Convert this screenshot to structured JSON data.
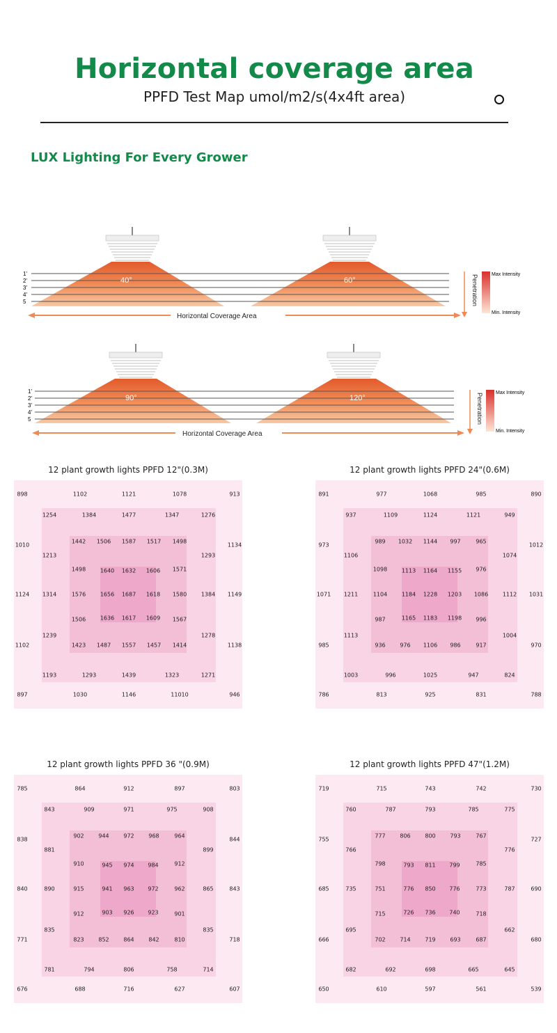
{
  "header": {
    "title": "Horizontal coverage area",
    "subtitle": "PPFD Test Map umol/m2/s(4x4ft area)"
  },
  "brand": "LUX Lighting For Every Grower",
  "diagram": {
    "levels": [
      "1'",
      "2'",
      "3'",
      "4'",
      "5"
    ],
    "coverage_label": "Horizontal Coverage Area",
    "angles": [
      "40°",
      "60°",
      "90°",
      "120°"
    ],
    "penetration_label": "Penetration",
    "max_label": "Max Intensity",
    "min_label": "Min. Intensity"
  },
  "colors": {
    "accent_green": "#138a4a",
    "ring0": "#fce9f1",
    "ring1": "#f8d4e4",
    "ring2": "#f3bfd7",
    "ring3": "#eea8c9"
  },
  "maps": [
    {
      "title": "12 plant growth lights  PPFD 12\"(0.3M)",
      "rows": [
        [
          "898",
          "1102",
          "1121",
          "1078",
          "913"
        ],
        [
          "1254",
          "1384",
          "1477",
          "1347",
          "1276"
        ],
        [
          "1010",
          "1134"
        ],
        [
          "1442",
          "1506",
          "1587",
          "1517",
          "1498"
        ],
        [
          "1213",
          "1293"
        ],
        [
          "1498",
          "1640",
          "1632",
          "1606",
          "1571"
        ],
        [
          "1124",
          "1314",
          "1576",
          "1656",
          "1687",
          "1618",
          "1580",
          "1384",
          "1149"
        ],
        [
          "1506",
          "1636",
          "1617",
          "1609",
          "1567"
        ],
        [
          "1239",
          "1278"
        ],
        [
          "1102",
          "1423",
          "1487",
          "1557",
          "1457",
          "1414",
          "1138"
        ],
        [
          "1193",
          "1293",
          "1439",
          "1323",
          "1271"
        ],
        [
          "897",
          "1030",
          "1146",
          "11010",
          "946"
        ]
      ]
    },
    {
      "title": "12 plant growth lights  PPFD 24\"(0.6M)",
      "rows": [
        [
          "891",
          "977",
          "1068",
          "985",
          "890"
        ],
        [
          "937",
          "1109",
          "1124",
          "1121",
          "949"
        ],
        [
          "973",
          "1012"
        ],
        [
          "989",
          "1032",
          "1144",
          "997",
          "965"
        ],
        [
          "1106",
          "1074"
        ],
        [
          "1098",
          "1113",
          "1164",
          "1155",
          "976"
        ],
        [
          "1071",
          "1211",
          "1104",
          "1184",
          "1228",
          "1203",
          "1086",
          "1112",
          "1031"
        ],
        [
          "987",
          "1165",
          "1183",
          "1198",
          "996"
        ],
        [
          "1113",
          "1004"
        ],
        [
          "985",
          "936",
          "976",
          "1106",
          "986",
          "917",
          "970"
        ],
        [
          "1003",
          "996",
          "1025",
          "947",
          "824"
        ],
        [
          "786",
          "813",
          "925",
          "831",
          "788"
        ]
      ]
    },
    {
      "title": "12 plant growth lights PPFD 36 \"(0.9M)",
      "rows": [
        [
          "785",
          "864",
          "912",
          "897",
          "803"
        ],
        [
          "843",
          "909",
          "971",
          "975",
          "908"
        ],
        [
          "838",
          "844"
        ],
        [
          "902",
          "944",
          "972",
          "968",
          "964"
        ],
        [
          "881",
          "899"
        ],
        [
          "910",
          "945",
          "974",
          "984",
          "912"
        ],
        [
          "840",
          "890",
          "915",
          "941",
          "963",
          "972",
          "962",
          "865",
          "843"
        ],
        [
          "912",
          "903",
          "926",
          "923",
          "901"
        ],
        [
          "835",
          "835"
        ],
        [
          "771",
          "823",
          "852",
          "864",
          "842",
          "810",
          "718"
        ],
        [
          "781",
          "794",
          "806",
          "758",
          "714"
        ],
        [
          "676",
          "688",
          "716",
          "627",
          "607"
        ]
      ]
    },
    {
      "title": "12 plant growth lights PPFD 47\"(1.2M)",
      "rows": [
        [
          "719",
          "715",
          "743",
          "742",
          "730"
        ],
        [
          "760",
          "787",
          "793",
          "785",
          "775"
        ],
        [
          "755",
          "727"
        ],
        [
          "777",
          "806",
          "800",
          "793",
          "767"
        ],
        [
          "766",
          "776"
        ],
        [
          "798",
          "793",
          "811",
          "799",
          "785"
        ],
        [
          "685",
          "735",
          "751",
          "776",
          "850",
          "776",
          "773",
          "787",
          "690"
        ],
        [
          "715",
          "726",
          "736",
          "740",
          "718"
        ],
        [
          "695",
          "662"
        ],
        [
          "666",
          "702",
          "714",
          "719",
          "693",
          "687",
          "680"
        ],
        [
          "682",
          "692",
          "698",
          "665",
          "645"
        ],
        [
          "650",
          "610",
          "597",
          "561",
          "539"
        ]
      ]
    }
  ]
}
